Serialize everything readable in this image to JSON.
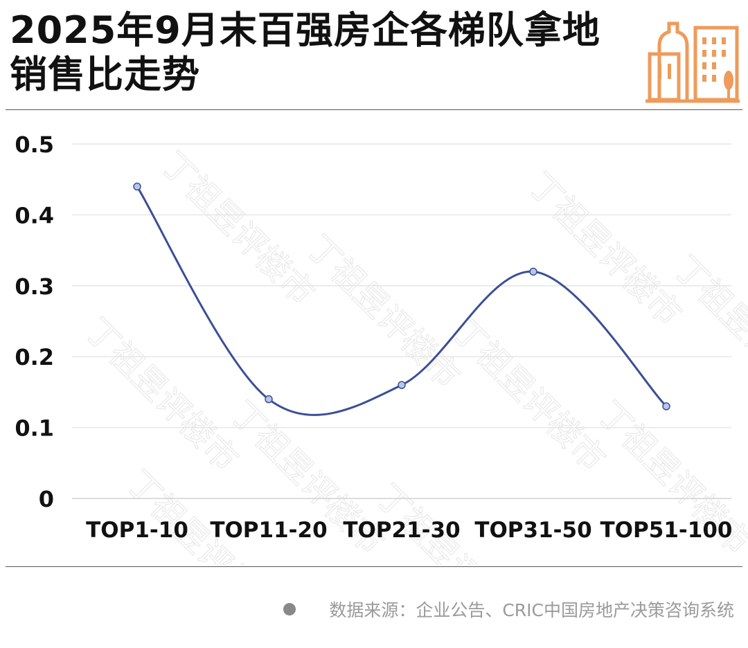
{
  "header": {
    "title": "2025年9月末百强房企各梯队拿地销售比走势",
    "icon": "building-icon",
    "accent_color": "#EE9B5B"
  },
  "chart_data": {
    "type": "line",
    "categories": [
      "TOP1-10",
      "TOP11-20",
      "TOP21-30",
      "TOP31-50",
      "TOP51-100"
    ],
    "values": [
      0.44,
      0.14,
      0.16,
      0.32,
      0.13
    ],
    "ylim": [
      0,
      0.5
    ],
    "yticks": [
      "0",
      "0.1",
      "0.2",
      "0.3",
      "0.4",
      "0.5"
    ],
    "ytick_values": [
      0,
      0.1,
      0.2,
      0.3,
      0.4,
      0.5
    ],
    "smooth": true,
    "grid": true,
    "line_color": "#3B4E97",
    "marker_color": "#B9C6E8",
    "title": "",
    "xlabel": "",
    "ylabel": ""
  },
  "watermark": {
    "text": "丁祖昱评楼市"
  },
  "footer": {
    "source": "数据来源：企业公告、CRIC中国房地产决策咨询系统"
  }
}
